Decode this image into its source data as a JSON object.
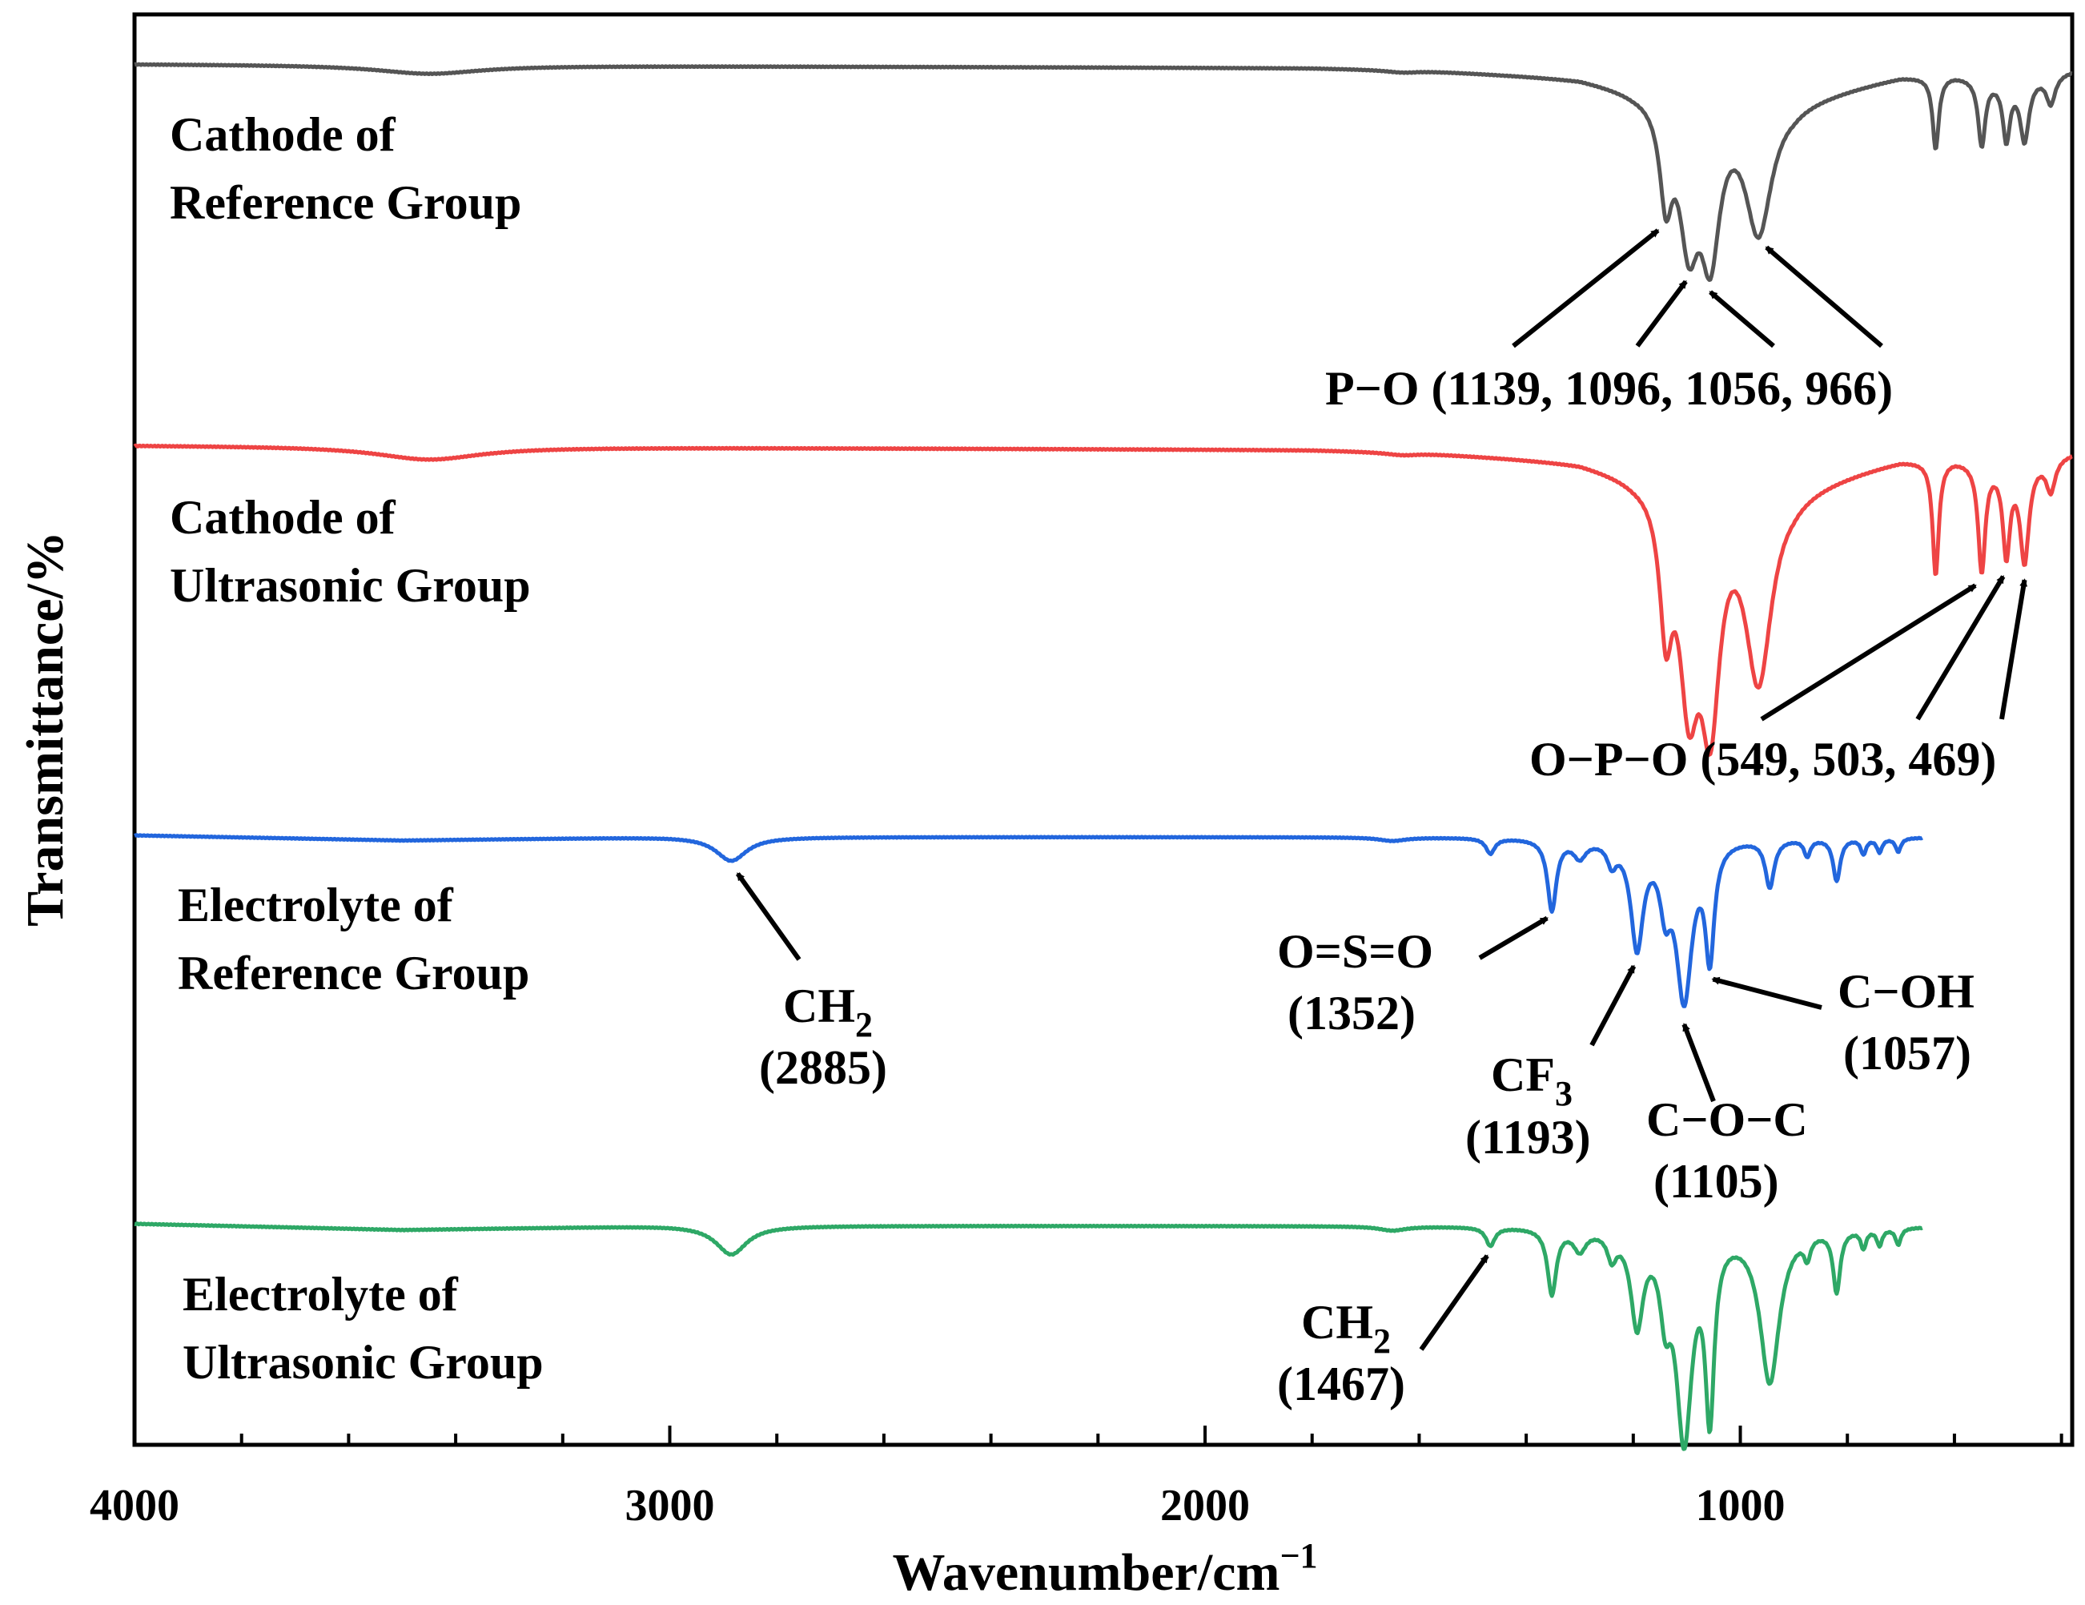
{
  "chart_data": {
    "type": "line",
    "title": "",
    "xlabel": "Wavenumber/cm",
    "xlabel_superscript": "−1",
    "ylabel": "Transmittance/%",
    "xlim": [
      4000,
      380
    ],
    "x_reversed": true,
    "x_major_ticks": [
      4000,
      3000,
      2000,
      1000
    ],
    "x_major_tick_labels": [
      "4000",
      "3000",
      "2000",
      "1000"
    ],
    "x_minor_step": 200,
    "y_ticks_shown": false,
    "y_units": "arbitrary, offset per series (0 = baseline, 1 = deepest band in range)",
    "series": [
      {
        "name": "Cathode of Reference Group",
        "label_lines": [
          "Cathode of",
          "Reference Group"
        ],
        "color": "#555555",
        "x_range": [
          4000,
          380
        ],
        "baseline": [
          [
            4000,
            0
          ],
          [
            3000,
            0.01
          ],
          [
            1800,
            0.02
          ],
          [
            1600,
            0.03
          ],
          [
            1300,
            0.07
          ],
          [
            1200,
            0.12
          ],
          [
            900,
            0.18
          ],
          [
            700,
            0.06
          ],
          [
            600,
            0.05
          ],
          [
            500,
            0.08
          ],
          [
            380,
            0.03
          ]
        ],
        "peaks": [
          {
            "x": 3450,
            "depth": 0.045,
            "width": 120
          },
          {
            "x": 1630,
            "depth": 0.012,
            "width": 40
          },
          {
            "x": 1139,
            "depth": 0.48,
            "width": 14
          },
          {
            "x": 1096,
            "depth": 0.68,
            "width": 22
          },
          {
            "x": 1056,
            "depth": 0.74,
            "width": 22
          },
          {
            "x": 966,
            "depth": 0.68,
            "width": 30
          },
          {
            "x": 635,
            "depth": 0.38,
            "width": 7
          },
          {
            "x": 549,
            "depth": 0.35,
            "width": 8
          },
          {
            "x": 503,
            "depth": 0.3,
            "width": 8
          },
          {
            "x": 469,
            "depth": 0.32,
            "width": 10
          },
          {
            "x": 420,
            "depth": 0.15,
            "width": 10
          }
        ]
      },
      {
        "name": "Cathode of Ultrasonic Group",
        "label_lines": [
          "Cathode of",
          "Ultrasonic Group"
        ],
        "color": "#ee4444",
        "x_range": [
          4000,
          380
        ],
        "baseline": [
          [
            4000,
            0
          ],
          [
            3000,
            0.01
          ],
          [
            1800,
            0.02
          ],
          [
            1600,
            0.03
          ],
          [
            1300,
            0.07
          ],
          [
            1200,
            0.12
          ],
          [
            900,
            0.18
          ],
          [
            700,
            0.06
          ],
          [
            600,
            0.05
          ],
          [
            500,
            0.08
          ],
          [
            380,
            0.03
          ]
        ],
        "peaks": [
          {
            "x": 3450,
            "depth": 0.06,
            "width": 120
          },
          {
            "x": 1630,
            "depth": 0.012,
            "width": 40
          },
          {
            "x": 1139,
            "depth": 0.58,
            "width": 14
          },
          {
            "x": 1096,
            "depth": 0.88,
            "width": 22
          },
          {
            "x": 1056,
            "depth": 0.97,
            "width": 22
          },
          {
            "x": 966,
            "depth": 0.87,
            "width": 30
          },
          {
            "x": 635,
            "depth": 0.53,
            "width": 7
          },
          {
            "x": 549,
            "depth": 0.5,
            "width": 8
          },
          {
            "x": 503,
            "depth": 0.4,
            "width": 8
          },
          {
            "x": 469,
            "depth": 0.45,
            "width": 10
          },
          {
            "x": 420,
            "depth": 0.15,
            "width": 10
          }
        ]
      },
      {
        "name": "Electrolyte of Reference Group",
        "label_lines": [
          "Electrolyte of",
          "Reference Group"
        ],
        "color": "#2266dd",
        "x_range": [
          4000,
          660
        ],
        "baseline": [
          [
            4000,
            0
          ],
          [
            3500,
            0.03
          ],
          [
            3000,
            0.01
          ],
          [
            1300,
            0.01
          ],
          [
            660,
            0.01
          ]
        ],
        "peaks": [
          {
            "x": 2885,
            "depth": 0.14,
            "width": 35
          },
          {
            "x": 1650,
            "depth": 0.02,
            "width": 30
          },
          {
            "x": 1467,
            "depth": 0.09,
            "width": 10
          },
          {
            "x": 1352,
            "depth": 0.42,
            "width": 10
          },
          {
            "x": 1300,
            "depth": 0.1,
            "width": 14
          },
          {
            "x": 1240,
            "depth": 0.12,
            "width": 10
          },
          {
            "x": 1193,
            "depth": 0.62,
            "width": 14
          },
          {
            "x": 1140,
            "depth": 0.32,
            "width": 12
          },
          {
            "x": 1105,
            "depth": 0.92,
            "width": 18
          },
          {
            "x": 1057,
            "depth": 0.65,
            "width": 10
          },
          {
            "x": 945,
            "depth": 0.28,
            "width": 10
          },
          {
            "x": 875,
            "depth": 0.1,
            "width": 7
          },
          {
            "x": 820,
            "depth": 0.25,
            "width": 8
          },
          {
            "x": 770,
            "depth": 0.09,
            "width": 6
          },
          {
            "x": 740,
            "depth": 0.08,
            "width": 6
          },
          {
            "x": 705,
            "depth": 0.08,
            "width": 6
          }
        ]
      },
      {
        "name": "Electrolyte of Ultrasonic Group",
        "label_lines": [
          "Electrolyte of",
          "Ultrasonic Group"
        ],
        "color": "#2ea866",
        "x_range": [
          4000,
          660
        ],
        "baseline": [
          [
            4000,
            0
          ],
          [
            3500,
            0.03
          ],
          [
            3000,
            0.01
          ],
          [
            1300,
            0.01
          ],
          [
            660,
            0.01
          ]
        ],
        "peaks": [
          {
            "x": 2885,
            "depth": 0.14,
            "width": 35
          },
          {
            "x": 1650,
            "depth": 0.02,
            "width": 30
          },
          {
            "x": 1467,
            "depth": 0.09,
            "width": 10
          },
          {
            "x": 1352,
            "depth": 0.32,
            "width": 10
          },
          {
            "x": 1300,
            "depth": 0.1,
            "width": 14
          },
          {
            "x": 1240,
            "depth": 0.12,
            "width": 10
          },
          {
            "x": 1193,
            "depth": 0.45,
            "width": 14
          },
          {
            "x": 1140,
            "depth": 0.32,
            "width": 12
          },
          {
            "x": 1105,
            "depth": 1.0,
            "width": 18
          },
          {
            "x": 1057,
            "depth": 0.85,
            "width": 10
          },
          {
            "x": 945,
            "depth": 0.75,
            "width": 22
          },
          {
            "x": 875,
            "depth": 0.1,
            "width": 7
          },
          {
            "x": 820,
            "depth": 0.3,
            "width": 8
          },
          {
            "x": 770,
            "depth": 0.09,
            "width": 6
          },
          {
            "x": 740,
            "depth": 0.08,
            "width": 6
          },
          {
            "x": 705,
            "depth": 0.08,
            "width": 6
          }
        ]
      }
    ],
    "annotations": [
      {
        "series": 0,
        "text": "P−O (1139, 1096, 1056, 966)",
        "peaks": [
          1139,
          1096,
          1056,
          966
        ]
      },
      {
        "series": 1,
        "text": "O−P−O (549, 503, 469)",
        "peaks": [
          549,
          503,
          469
        ]
      },
      {
        "series": 2,
        "group": "CH2",
        "text_main": "CH",
        "text_sub": "2",
        "text_line2": "(2885)",
        "peak": 2885
      },
      {
        "series": 2,
        "group": "SO2",
        "text_main": "O=S=O",
        "text_line2": "(1352)",
        "peak": 1352
      },
      {
        "series": 2,
        "group": "CF3",
        "text_main": "CF",
        "text_sub": "3",
        "text_line2": "(1193)",
        "peak": 1193
      },
      {
        "series": 2,
        "group": "COC",
        "text_main": "C−O−C",
        "text_line2": "(1105)",
        "peak": 1105
      },
      {
        "series": 2,
        "group": "COH",
        "text_main": "C−OH",
        "text_line2": "(1057)",
        "peak": 1057
      },
      {
        "series": 3,
        "group": "CH2b",
        "text_main": "CH",
        "text_sub": "2",
        "text_line2": "(1467)",
        "peak": 1467
      }
    ]
  }
}
